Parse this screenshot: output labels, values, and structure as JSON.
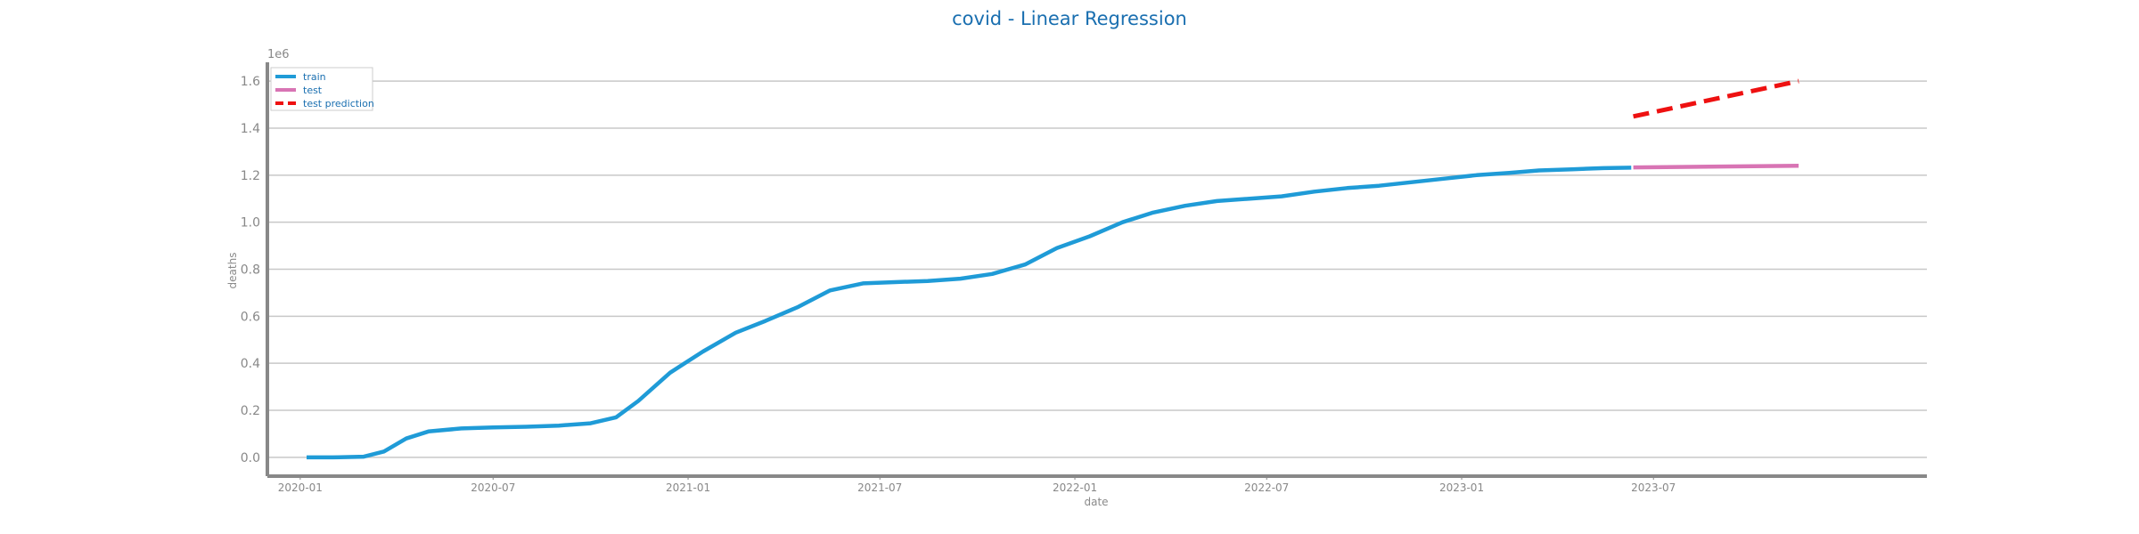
{
  "chart_data": {
    "type": "line",
    "title": "covid - Linear Regression",
    "xlabel": "date",
    "ylabel": "deaths",
    "y_scale_label": "1e6",
    "y_scale": 1000000,
    "xlim": [
      "2019-12-01",
      "2024-03-15"
    ],
    "ylim": [
      -0.08,
      1.68
    ],
    "x_ticks": [
      "2020-01-01",
      "2020-07-01",
      "2021-01-01",
      "2021-07-01",
      "2022-01-01",
      "2022-07-01",
      "2023-01-01",
      "2023-07-01"
    ],
    "x_tick_labels": [
      "2020-01",
      "2020-07",
      "2021-01",
      "2021-07",
      "2022-01",
      "2022-07",
      "2023-01",
      "2023-07"
    ],
    "y_ticks": [
      0.0,
      0.2,
      0.4,
      0.6,
      0.8,
      1.0,
      1.2,
      1.4,
      1.6
    ],
    "y_tick_labels": [
      "0.0",
      "0.2",
      "0.4",
      "0.6",
      "0.8",
      "1.0",
      "1.2",
      "1.4",
      "1.6"
    ],
    "grid": "horizontal",
    "legend_position": "top-left",
    "colors": {
      "title": "#1a6fb0",
      "legend_text": "#1a6fb0",
      "grid": "#c8c8c8",
      "axis": "#888888"
    },
    "series": [
      {
        "name": "train",
        "color": "#1f9bd7",
        "style": "solid",
        "points": [
          [
            "2020-01-07",
            0.0
          ],
          [
            "2020-02-01",
            0.0
          ],
          [
            "2020-03-01",
            0.003
          ],
          [
            "2020-03-20",
            0.025
          ],
          [
            "2020-04-10",
            0.08
          ],
          [
            "2020-05-01",
            0.11
          ],
          [
            "2020-06-01",
            0.123
          ],
          [
            "2020-07-01",
            0.127
          ],
          [
            "2020-08-01",
            0.13
          ],
          [
            "2020-09-01",
            0.135
          ],
          [
            "2020-10-01",
            0.145
          ],
          [
            "2020-10-25",
            0.17
          ],
          [
            "2020-11-15",
            0.24
          ],
          [
            "2020-12-15",
            0.36
          ],
          [
            "2021-01-15",
            0.45
          ],
          [
            "2021-02-15",
            0.53
          ],
          [
            "2021-03-15",
            0.58
          ],
          [
            "2021-04-15",
            0.64
          ],
          [
            "2021-05-15",
            0.71
          ],
          [
            "2021-06-15",
            0.74
          ],
          [
            "2021-07-15",
            0.745
          ],
          [
            "2021-08-15",
            0.75
          ],
          [
            "2021-09-15",
            0.76
          ],
          [
            "2021-10-15",
            0.78
          ],
          [
            "2021-11-15",
            0.82
          ],
          [
            "2021-12-15",
            0.89
          ],
          [
            "2022-01-15",
            0.94
          ],
          [
            "2022-02-15",
            1.0
          ],
          [
            "2022-03-15",
            1.04
          ],
          [
            "2022-04-15",
            1.07
          ],
          [
            "2022-05-15",
            1.09
          ],
          [
            "2022-06-15",
            1.1
          ],
          [
            "2022-07-15",
            1.11
          ],
          [
            "2022-08-15",
            1.13
          ],
          [
            "2022-09-15",
            1.145
          ],
          [
            "2022-10-15",
            1.155
          ],
          [
            "2022-11-15",
            1.17
          ],
          [
            "2022-12-15",
            1.185
          ],
          [
            "2023-01-15",
            1.2
          ],
          [
            "2023-02-15",
            1.21
          ],
          [
            "2023-03-15",
            1.22
          ],
          [
            "2023-04-15",
            1.225
          ],
          [
            "2023-05-15",
            1.23
          ],
          [
            "2023-06-10",
            1.232
          ]
        ]
      },
      {
        "name": "test",
        "color": "#d874b4",
        "style": "solid",
        "points": [
          [
            "2023-06-12",
            1.233
          ],
          [
            "2023-11-15",
            1.24
          ]
        ]
      },
      {
        "name": "test prediction",
        "color": "#ee1111",
        "style": "dashed",
        "points": [
          [
            "2023-06-12",
            1.45
          ],
          [
            "2023-11-15",
            1.6
          ]
        ]
      }
    ]
  }
}
